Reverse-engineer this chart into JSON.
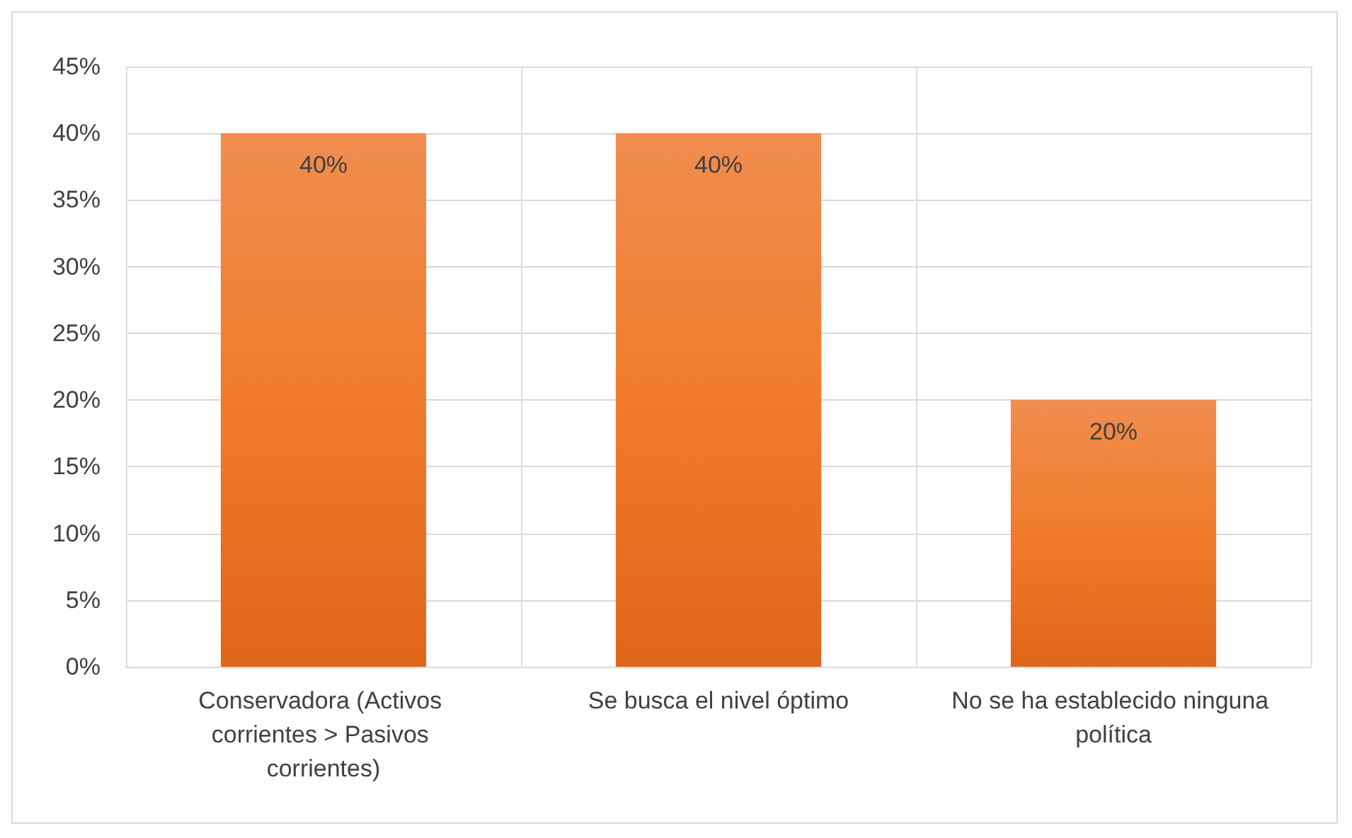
{
  "chart_data": {
    "type": "bar",
    "categories": [
      "Conservadora (Activos corrientes > Pasivos corrientes)",
      "Se busca el nivel óptimo",
      "No se ha establecido ninguna política"
    ],
    "values": [
      40,
      40,
      20
    ],
    "value_labels": [
      "40%",
      "40%",
      "20%"
    ],
    "color": "#f07c2a",
    "ylim": [
      0,
      45
    ],
    "yticks": [
      {
        "value": 0,
        "label": "0%"
      },
      {
        "value": 5,
        "label": "5%"
      },
      {
        "value": 10,
        "label": "10%"
      },
      {
        "value": 15,
        "label": "15%"
      },
      {
        "value": 20,
        "label": "20%"
      },
      {
        "value": 25,
        "label": "25%"
      },
      {
        "value": 30,
        "label": "30%"
      },
      {
        "value": 35,
        "label": "35%"
      },
      {
        "value": 40,
        "label": "40%"
      },
      {
        "value": 45,
        "label": "45%"
      }
    ],
    "grid": true
  }
}
